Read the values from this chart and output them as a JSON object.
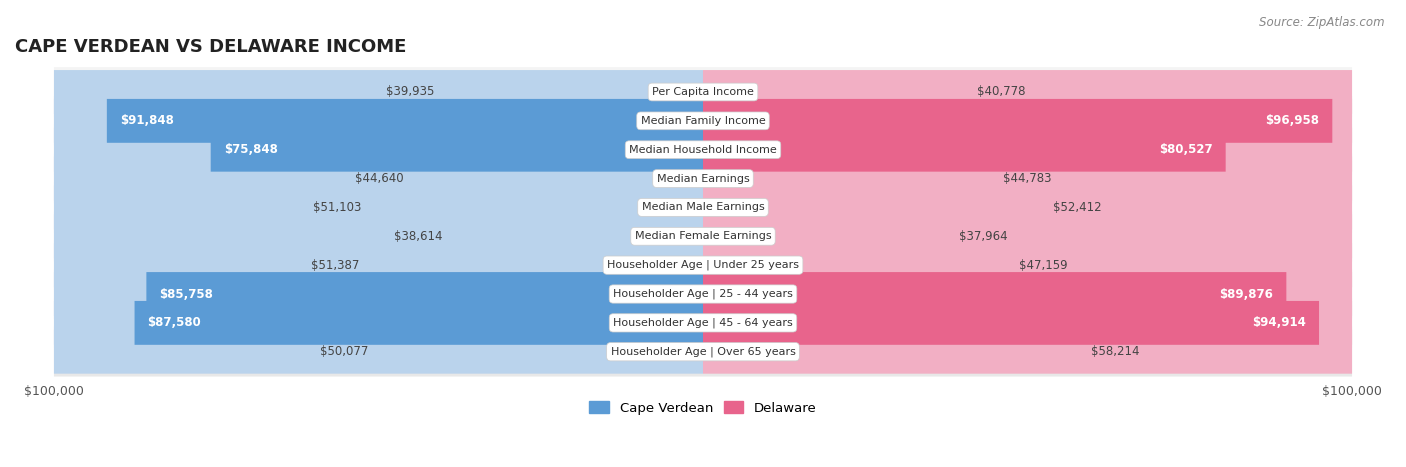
{
  "title": "CAPE VERDEAN VS DELAWARE INCOME",
  "source": "Source: ZipAtlas.com",
  "categories": [
    "Per Capita Income",
    "Median Family Income",
    "Median Household Income",
    "Median Earnings",
    "Median Male Earnings",
    "Median Female Earnings",
    "Householder Age | Under 25 years",
    "Householder Age | 25 - 44 years",
    "Householder Age | 45 - 64 years",
    "Householder Age | Over 65 years"
  ],
  "cape_verdean": [
    39935,
    91848,
    75848,
    44640,
    51103,
    38614,
    51387,
    85758,
    87580,
    50077
  ],
  "delaware": [
    40778,
    96958,
    80527,
    44783,
    52412,
    37964,
    47159,
    89876,
    94914,
    58214
  ],
  "cape_verdean_labels": [
    "$39,935",
    "$91,848",
    "$75,848",
    "$44,640",
    "$51,103",
    "$38,614",
    "$51,387",
    "$85,758",
    "$87,580",
    "$50,077"
  ],
  "delaware_labels": [
    "$40,778",
    "$96,958",
    "$80,527",
    "$44,783",
    "$52,412",
    "$37,964",
    "$47,159",
    "$89,876",
    "$94,914",
    "$58,214"
  ],
  "max_value": 100000,
  "color_cape_verdean_dark": "#5b9bd5",
  "color_cape_verdean_light": "#bad3ec",
  "color_delaware_dark": "#e8648c",
  "color_delaware_light": "#f2afc4",
  "bg_row_light": "#f4f4f4",
  "bg_row_dark": "#e8e8e8",
  "bg_outer_color": "#ffffff",
  "label_fontsize": 8.5,
  "title_fontsize": 13,
  "category_fontsize": 8.0,
  "threshold": 68000
}
